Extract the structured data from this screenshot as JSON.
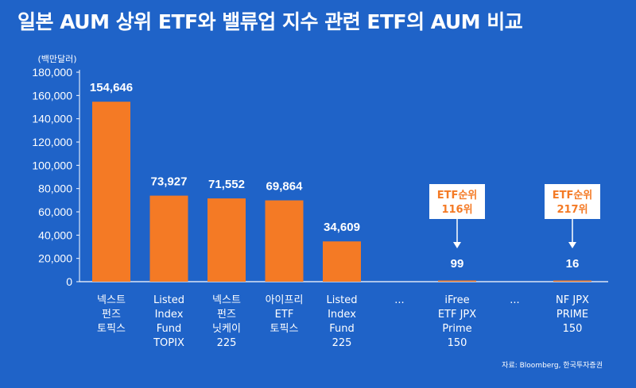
{
  "title": "일본 AUM 상위 ETF와 밸류업 지수 관련 ETF의 AUM 비교",
  "source": "자료: Bloomberg, 한국투자증권",
  "colors": {
    "background": "#1f63c8",
    "bar": "#f47a25",
    "text": "#ffffff",
    "callout_fill": "#ffffff"
  },
  "chart_data": {
    "type": "bar",
    "ylabel": "(백만달러)",
    "ylim": [
      0,
      180000
    ],
    "yticks": [
      "0",
      "20,000",
      "40,000",
      "60,000",
      "80,000",
      "100,000",
      "120,000",
      "140,000",
      "160,000",
      "180,000"
    ],
    "grid": false,
    "categories": [
      [
        "넥스트",
        "펀즈",
        "토픽스"
      ],
      [
        "Listed",
        "Index",
        "Fund",
        "TOPIX"
      ],
      [
        "넥스트",
        "펀즈",
        "닛케이",
        "225"
      ],
      [
        "아이프리",
        "ETF",
        "토픽스"
      ],
      [
        "Listed",
        "Index",
        "Fund",
        "225"
      ],
      [
        "..."
      ],
      [
        "iFree",
        "ETF JPX",
        "Prime",
        "150"
      ],
      [
        "..."
      ],
      [
        "NF JPX",
        "PRIME",
        "150"
      ]
    ],
    "values": [
      154646,
      73927,
      71552,
      69864,
      34609,
      null,
      99,
      null,
      16
    ],
    "value_labels": [
      "154,646",
      "73,927",
      "71,552",
      "69,864",
      "34,609",
      "",
      "99",
      "",
      "16"
    ],
    "annotations": [
      {
        "category_index": 6,
        "lines": [
          "ETF순위",
          "116위"
        ]
      },
      {
        "category_index": 8,
        "lines": [
          "ETF순위",
          "217위"
        ]
      }
    ]
  }
}
